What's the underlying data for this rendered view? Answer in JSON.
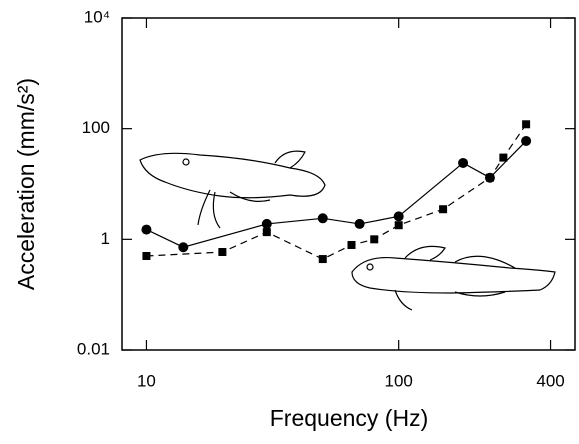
{
  "chart_data": {
    "type": "line",
    "x_label": "Frequency (Hz)",
    "y_label": "Acceleration (mm/s²)",
    "xscale": "log",
    "yscale": "log",
    "xlim": [
      8,
      500
    ],
    "ylim": [
      0.01,
      10000
    ],
    "xticks": [
      10,
      100,
      400
    ],
    "yticks": [
      0.01,
      1,
      100,
      {
        "value": 10000,
        "label": "10⁴"
      }
    ],
    "series": [
      {
        "color": "#000000",
        "marker": "circle",
        "linestyle": "solid",
        "x": [
          10,
          14,
          30,
          50,
          70,
          100,
          180,
          230,
          320
        ],
        "values": [
          1.5,
          0.72,
          1.9,
          2.4,
          1.9,
          2.6,
          24,
          13,
          60
        ]
      },
      {
        "color": "#000000",
        "marker": "square",
        "linestyle": "dashed",
        "x": [
          10,
          20,
          30,
          50,
          65,
          80,
          100,
          150,
          230,
          260,
          320
        ],
        "values": [
          0.5,
          0.59,
          1.35,
          0.44,
          0.79,
          1.0,
          1.8,
          3.5,
          13,
          30,
          120
        ]
      }
    ]
  }
}
